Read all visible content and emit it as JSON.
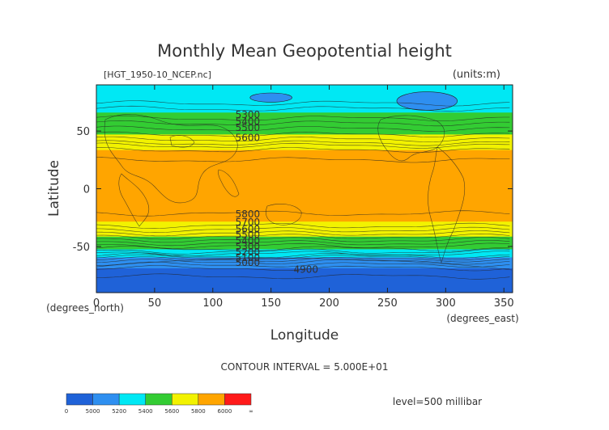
{
  "chart_data": {
    "type": "heatmap",
    "title": "Monthly Mean Geopotential height",
    "file_label": "[HGT_1950-10_NCEP.nc]",
    "units_label": "(units:m)",
    "xlabel": "Longitude",
    "ylabel": "Latitude",
    "x_unit_label": "(degrees_east)",
    "y_unit_label": "(degrees_north)",
    "xlim": [
      0,
      357.5
    ],
    "ylim": [
      -90,
      90
    ],
    "x_ticks": [
      0,
      50,
      100,
      150,
      200,
      250,
      300,
      350
    ],
    "y_ticks": [
      50,
      0,
      -50
    ],
    "contour_interval_text": "CONTOUR INTERVAL = 5.000E+01",
    "level_text": "level=500 millibar",
    "color_levels": [
      {
        "min": 0,
        "max": 5000,
        "color": "#1f62d8"
      },
      {
        "min": 5000,
        "max": 5200,
        "color": "#2e8ff0"
      },
      {
        "min": 5200,
        "max": 5400,
        "color": "#00e8f4"
      },
      {
        "min": 5400,
        "max": 5600,
        "color": "#33cc33"
      },
      {
        "min": 5600,
        "max": 5800,
        "color": "#f2f200"
      },
      {
        "min": 5800,
        "max": 6000,
        "color": "#ffa500"
      },
      {
        "min": 6000,
        "max": null,
        "color": "#ff1a1a"
      }
    ],
    "colorbar_labels": [
      "0",
      "5000",
      "5200",
      "5400",
      "5600",
      "5800",
      "6000",
      "∞"
    ],
    "zonal_profile": {
      "lat": [
        90,
        80,
        72,
        66,
        60,
        55,
        50,
        45,
        40,
        36,
        30,
        20,
        0,
        -20,
        -28,
        -33,
        -37,
        -42,
        -46,
        -50,
        -54,
        -57,
        -60,
        -64,
        -70,
        -80,
        -90
      ],
      "hgt": [
        5260,
        5270,
        5310,
        5400,
        5460,
        5520,
        5570,
        5620,
        5690,
        5780,
        5830,
        5870,
        5880,
        5860,
        5800,
        5740,
        5680,
        5590,
        5520,
        5440,
        5360,
        5280,
        5180,
        5080,
        4980,
        4930,
        4950
      ]
    },
    "contour_labels": [
      {
        "text": "5300",
        "lon": 130,
        "lat": 64
      },
      {
        "text": "5400",
        "lon": 130,
        "lat": 58
      },
      {
        "text": "5500",
        "lon": 130,
        "lat": 53
      },
      {
        "text": "5600",
        "lon": 130,
        "lat": 44
      },
      {
        "text": "5800",
        "lon": 130,
        "lat": -22
      },
      {
        "text": "5700",
        "lon": 130,
        "lat": -29
      },
      {
        "text": "5600",
        "lon": 130,
        "lat": -35
      },
      {
        "text": "5500",
        "lon": 130,
        "lat": -40
      },
      {
        "text": "5400",
        "lon": 130,
        "lat": -45
      },
      {
        "text": "5300",
        "lon": 130,
        "lat": -50
      },
      {
        "text": "5200",
        "lon": 130,
        "lat": -55
      },
      {
        "text": "5100",
        "lon": 130,
        "lat": -60
      },
      {
        "text": "5000",
        "lon": 130,
        "lat": -64
      },
      {
        "text": "4900",
        "lon": 180,
        "lat": -70
      }
    ],
    "blobs": [
      {
        "lon": 284,
        "lat": 76,
        "rlon": 26,
        "rlat": 8,
        "color": "#2e8ff0"
      },
      {
        "lon": 150,
        "lat": 79,
        "rlon": 18,
        "rlat": 4,
        "color": "#2e8ff0"
      }
    ]
  }
}
